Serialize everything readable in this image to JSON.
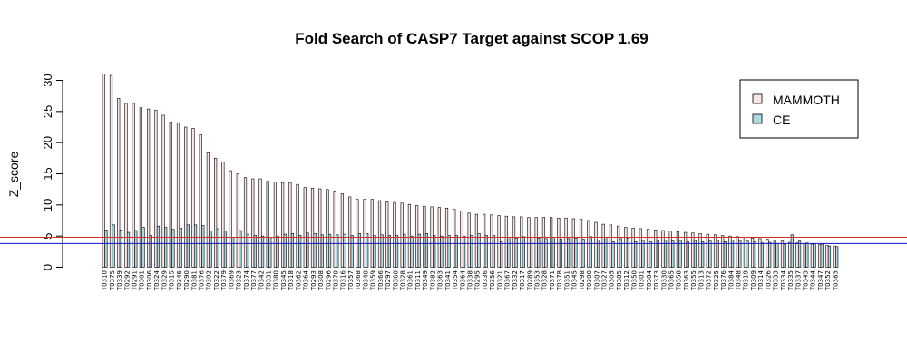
{
  "chart_data": {
    "type": "bar",
    "title": "Fold Search of CASP7 Target against SCOP 1.69",
    "ylabel": "Z_score",
    "xlabel": "",
    "ylim": [
      0,
      30
    ],
    "yticks": [
      0,
      5,
      10,
      15,
      20,
      25,
      30
    ],
    "grid": false,
    "legend_position": "top-right",
    "reference_lines": [
      {
        "value": 4.8,
        "color": "#d03030"
      },
      {
        "value": 3.8,
        "color": "#1010c0"
      }
    ],
    "series": [
      {
        "name": "MAMMOTH",
        "color": "#fbe4e4",
        "values": [
          31.0,
          30.8,
          27.1,
          26.3,
          26.3,
          25.6,
          25.4,
          25.2,
          24.4,
          23.3,
          23.2,
          22.5,
          22.3,
          21.3,
          18.4,
          17.5,
          16.9,
          15.5,
          15.0,
          14.4,
          14.2,
          14.2,
          13.8,
          13.7,
          13.6,
          13.6,
          13.3,
          12.8,
          12.7,
          12.6,
          12.5,
          12.1,
          11.8,
          11.3,
          10.9,
          10.9,
          10.9,
          10.7,
          10.5,
          10.4,
          10.3,
          10.1,
          9.9,
          9.8,
          9.7,
          9.6,
          9.5,
          9.3,
          9.0,
          8.7,
          8.5,
          8.5,
          8.4,
          8.3,
          8.2,
          8.1,
          8.1,
          8.0,
          8.0,
          8.0,
          8.0,
          7.9,
          7.9,
          7.8,
          7.7,
          7.5,
          7.2,
          6.9,
          6.8,
          6.6,
          6.4,
          6.3,
          6.2,
          6.1,
          6.0,
          5.9,
          5.8,
          5.7,
          5.6,
          5.5,
          5.4,
          5.3,
          5.2,
          5.1,
          5.0,
          4.9,
          4.8,
          4.7,
          4.6,
          4.5,
          4.4,
          4.2,
          4.0,
          3.9,
          3.8,
          3.7,
          3.6,
          3.5,
          3.4
        ]
      },
      {
        "name": "CE",
        "color": "#add8e6",
        "values": [
          6.0,
          6.8,
          6.0,
          5.6,
          5.9,
          6.4,
          5.1,
          6.6,
          6.4,
          6.1,
          6.3,
          6.8,
          6.8,
          6.7,
          5.8,
          6.2,
          5.8,
          4.8,
          5.9,
          5.3,
          5.1,
          5.0,
          4.8,
          5.0,
          5.3,
          5.4,
          5.1,
          5.5,
          5.4,
          5.2,
          5.3,
          5.2,
          5.3,
          5.1,
          5.4,
          5.4,
          5.1,
          5.2,
          5.1,
          5.1,
          5.3,
          5.0,
          5.3,
          5.4,
          5.1,
          5.0,
          5.1,
          5.1,
          5.0,
          5.1,
          5.4,
          5.1,
          5.1,
          4.1,
          4.8,
          4.7,
          4.9,
          4.8,
          4.7,
          4.6,
          4.8,
          4.5,
          4.6,
          4.7,
          4.5,
          4.9,
          4.4,
          4.8,
          4.1,
          4.6,
          4.7,
          4.1,
          4.3,
          4.1,
          4.4,
          4.4,
          4.2,
          4.3,
          4.1,
          4.3,
          4.1,
          4.2,
          4.3,
          4.1,
          4.4,
          4.3,
          4.2,
          4.1,
          3.9,
          4.0,
          3.8,
          3.7,
          5.2,
          4.2,
          3.9,
          3.8,
          3.7,
          3.4,
          3.3
        ]
      }
    ],
    "categories": [
      "T0310",
      "T0375",
      "T0339",
      "T0292",
      "T0291",
      "T0301",
      "T0306",
      "T0324",
      "T0329",
      "T0315",
      "T0346",
      "T0290",
      "T0381",
      "T0376",
      "T0302",
      "T0322",
      "T0379",
      "T0369",
      "T0323",
      "T0374",
      "T0377",
      "T0342",
      "T0331",
      "T0380",
      "T0345",
      "T0318",
      "T0362",
      "T0364",
      "T0293",
      "T0308",
      "T0296",
      "T0370",
      "T0316",
      "T0357",
      "T0368",
      "T0340",
      "T0359",
      "T0366",
      "T0297",
      "T0360",
      "T0328",
      "T0361",
      "T0311",
      "T0349",
      "T0382",
      "T0363",
      "T0341",
      "T0354",
      "T0364",
      "T0338",
      "T0295",
      "T0336",
      "T0356",
      "T0321",
      "T0367",
      "T0332",
      "T0317",
      "T0289",
      "T0353",
      "T0328",
      "T0371",
      "T0378",
      "T0351",
      "T0345",
      "T0298",
      "T0300",
      "T0307",
      "T0327",
      "T0305",
      "T0385",
      "T0312",
      "T0350",
      "T0301",
      "T0304",
      "T0373",
      "T0330",
      "T0365",
      "T0358",
      "T0363",
      "T0355",
      "T0313",
      "T0372",
      "T0325",
      "T0376",
      "T0384",
      "T0348",
      "T0319",
      "T0309",
      "T0314",
      "T0326",
      "T0333",
      "T0334",
      "T0335",
      "T0337",
      "T0343",
      "T0344",
      "T0347",
      "T0352",
      "T0383"
    ]
  }
}
